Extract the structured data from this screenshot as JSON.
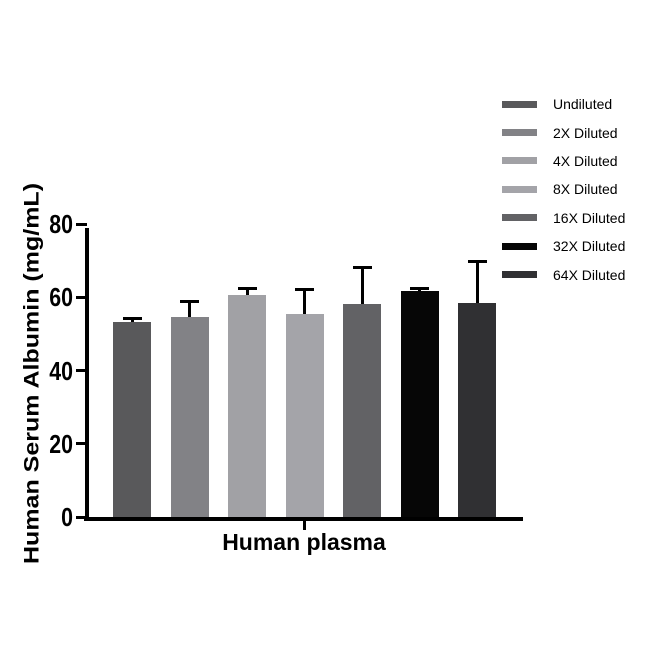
{
  "chart_data": {
    "type": "bar",
    "title": "",
    "xlabel": "Human plasma",
    "ylabel": "Human Serum Albumin (mg/mL)",
    "ylim": [
      0,
      80
    ],
    "yticks": [
      0,
      20,
      40,
      60,
      80
    ],
    "categories": [
      "Human plasma"
    ],
    "grid": false,
    "legend_position": "right-top",
    "axis_color": "#000000",
    "error_bar_color": "#000000",
    "series": [
      {
        "name": "Undiluted",
        "value": 53.3,
        "error_plus": 0.6,
        "color": "#59595b"
      },
      {
        "name": "2X Diluted",
        "value": 54.6,
        "error_plus": 3.8,
        "color": "#828286"
      },
      {
        "name": "4X Diluted",
        "value": 60.7,
        "error_plus": 1.4,
        "color": "#a1a1a5"
      },
      {
        "name": "8X Diluted",
        "value": 55.5,
        "error_plus": 6.2,
        "color": "#a4a4a9"
      },
      {
        "name": "16X Diluted",
        "value": 58.2,
        "error_plus": 9.6,
        "color": "#626265"
      },
      {
        "name": "32X Diluted",
        "value": 61.6,
        "error_plus": 0.4,
        "color": "#060606"
      },
      {
        "name": "64X Diluted",
        "value": 58.4,
        "error_plus": 10.9,
        "color": "#303033"
      }
    ]
  }
}
